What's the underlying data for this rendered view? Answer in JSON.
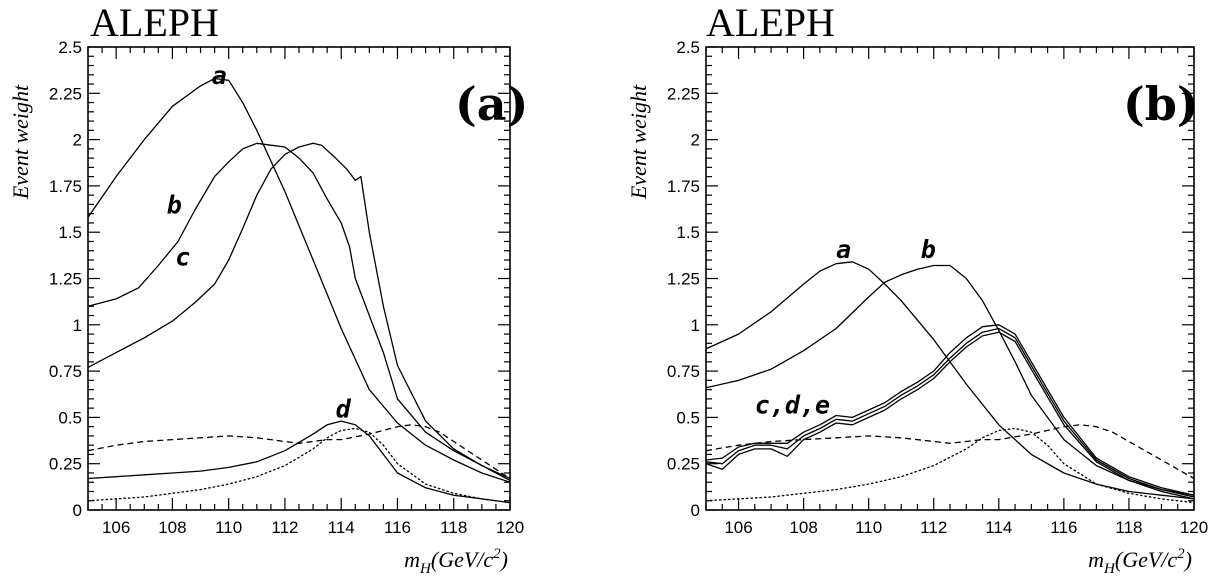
{
  "chart_data": [
    {
      "type": "line",
      "title": "ALEPH",
      "panel_label": "(a)",
      "xlabel": "m_H(GeV/c^2)",
      "ylabel": "Event weight",
      "xlim": [
        105,
        120
      ],
      "ylim": [
        0,
        2.5
      ],
      "x_ticks": [
        "106",
        "108",
        "110",
        "112",
        "114",
        "116",
        "118",
        "120"
      ],
      "y_ticks": [
        "0",
        "0.25",
        "0.5",
        "0.75",
        "1",
        "1.25",
        "1.5",
        "1.75",
        "2",
        "2.25",
        "2.5"
      ],
      "grid": false,
      "series": [
        {
          "name": "a",
          "style": "solid",
          "label_at": [
            109.4,
            2.3
          ],
          "x": [
            105,
            106,
            107,
            108,
            109,
            109.5,
            110,
            110.5,
            111,
            112,
            113,
            114,
            115,
            116,
            117,
            118,
            119,
            120
          ],
          "y": [
            1.58,
            1.8,
            2.0,
            2.18,
            2.29,
            2.33,
            2.32,
            2.2,
            2.05,
            1.72,
            1.35,
            0.98,
            0.65,
            0.47,
            0.35,
            0.27,
            0.2,
            0.15
          ]
        },
        {
          "name": "b",
          "style": "solid",
          "label_at": [
            107.8,
            1.6
          ],
          "x": [
            105,
            106,
            106.8,
            107.5,
            108.2,
            108.8,
            109.5,
            110,
            110.5,
            111,
            111.5,
            112,
            112.5,
            113,
            113.5,
            114,
            114.3,
            114.5,
            115,
            115.5,
            116,
            117,
            118,
            119,
            120
          ],
          "y": [
            1.1,
            1.14,
            1.2,
            1.32,
            1.45,
            1.62,
            1.8,
            1.88,
            1.95,
            1.98,
            1.97,
            1.96,
            1.9,
            1.82,
            1.68,
            1.55,
            1.42,
            1.25,
            1.05,
            0.85,
            0.6,
            0.42,
            0.32,
            0.24,
            0.16
          ]
        },
        {
          "name": "c",
          "style": "solid",
          "label_at": [
            108.1,
            1.32
          ],
          "x": [
            105,
            106,
            107,
            108,
            108.8,
            109.5,
            110,
            110.5,
            111,
            111.5,
            112,
            112.5,
            113,
            113.3,
            113.8,
            114.2,
            114.5,
            114.7,
            115,
            115.5,
            116,
            117,
            118,
            119,
            120
          ],
          "y": [
            0.77,
            0.85,
            0.93,
            1.02,
            1.12,
            1.22,
            1.35,
            1.52,
            1.7,
            1.84,
            1.92,
            1.96,
            1.98,
            1.97,
            1.9,
            1.84,
            1.78,
            1.8,
            1.5,
            1.1,
            0.78,
            0.48,
            0.33,
            0.24,
            0.17
          ]
        },
        {
          "name": "d",
          "style": "solid",
          "label_at": [
            113.8,
            0.5
          ],
          "x": [
            105,
            106,
            107,
            108,
            109,
            110,
            111,
            112,
            113,
            113.5,
            114,
            114.5,
            115,
            115.5,
            116,
            117,
            118,
            119,
            120
          ],
          "y": [
            0.17,
            0.18,
            0.19,
            0.2,
            0.21,
            0.23,
            0.26,
            0.32,
            0.41,
            0.46,
            0.48,
            0.46,
            0.4,
            0.3,
            0.2,
            0.12,
            0.08,
            0.06,
            0.04
          ]
        },
        {
          "name": "",
          "style": "dashed",
          "x": [
            105,
            106,
            107,
            108,
            109,
            110,
            111,
            112,
            112.5,
            113,
            113.5,
            114,
            115,
            115.5,
            116,
            116.5,
            117,
            117.5,
            118,
            119,
            120
          ],
          "y": [
            0.32,
            0.35,
            0.37,
            0.38,
            0.39,
            0.4,
            0.39,
            0.37,
            0.36,
            0.37,
            0.38,
            0.38,
            0.41,
            0.43,
            0.45,
            0.46,
            0.45,
            0.42,
            0.37,
            0.27,
            0.17
          ]
        },
        {
          "name": "",
          "style": "dotted",
          "x": [
            105,
            106,
            107,
            108,
            109,
            110,
            111,
            112,
            113,
            113.5,
            114,
            114.5,
            115,
            115.5,
            116,
            117,
            118,
            119,
            120
          ],
          "y": [
            0.05,
            0.06,
            0.07,
            0.09,
            0.11,
            0.14,
            0.18,
            0.24,
            0.33,
            0.39,
            0.43,
            0.44,
            0.42,
            0.35,
            0.25,
            0.14,
            0.09,
            0.06,
            0.04
          ]
        }
      ]
    },
    {
      "type": "line",
      "title": "ALEPH",
      "panel_label": "(b)",
      "xlabel": "m_H(GeV/c^2)",
      "ylabel": "Event weight",
      "xlim": [
        105,
        120
      ],
      "ylim": [
        0,
        2.5
      ],
      "x_ticks": [
        "106",
        "108",
        "110",
        "112",
        "114",
        "116",
        "118",
        "120"
      ],
      "y_ticks": [
        "0",
        "0.25",
        "0.5",
        "0.75",
        "1",
        "1.25",
        "1.5",
        "1.75",
        "2",
        "2.25",
        "2.5"
      ],
      "grid": false,
      "labels": [
        {
          "text": "a",
          "at": [
            109.0,
            1.36
          ]
        },
        {
          "text": "b",
          "at": [
            111.6,
            1.36
          ]
        },
        {
          "text": "c,d,e",
          "at": [
            106.5,
            0.52
          ]
        }
      ],
      "series": [
        {
          "name": "a",
          "style": "solid",
          "x": [
            105,
            106,
            107,
            108,
            108.5,
            109,
            109.5,
            110,
            110.5,
            111,
            112,
            113,
            114,
            115,
            116,
            117,
            118,
            119,
            120
          ],
          "y": [
            0.87,
            0.95,
            1.07,
            1.22,
            1.29,
            1.33,
            1.34,
            1.3,
            1.22,
            1.13,
            0.92,
            0.68,
            0.46,
            0.3,
            0.2,
            0.14,
            0.1,
            0.08,
            0.06
          ]
        },
        {
          "name": "b",
          "style": "solid",
          "x": [
            105,
            106,
            107,
            108,
            109,
            110,
            110.5,
            111,
            111.5,
            112,
            112.5,
            113,
            113.5,
            114,
            114.5,
            115,
            116,
            117,
            118,
            119,
            120
          ],
          "y": [
            0.66,
            0.7,
            0.76,
            0.86,
            0.98,
            1.15,
            1.23,
            1.27,
            1.3,
            1.32,
            1.32,
            1.25,
            1.13,
            0.97,
            0.8,
            0.62,
            0.38,
            0.24,
            0.16,
            0.11,
            0.08
          ]
        },
        {
          "name": "c",
          "style": "solid",
          "x": [
            105,
            105.5,
            106,
            106.5,
            107,
            107.5,
            108,
            108.5,
            109,
            109.5,
            110,
            110.5,
            111,
            111.5,
            112,
            112.5,
            113,
            113.5,
            114,
            114.5,
            115,
            116,
            117,
            118,
            119,
            120
          ],
          "y": [
            0.27,
            0.28,
            0.34,
            0.36,
            0.36,
            0.36,
            0.42,
            0.46,
            0.51,
            0.5,
            0.54,
            0.58,
            0.64,
            0.69,
            0.75,
            0.85,
            0.93,
            0.99,
            1.0,
            0.95,
            0.8,
            0.5,
            0.28,
            0.18,
            0.12,
            0.08
          ]
        },
        {
          "name": "d",
          "style": "solid",
          "x": [
            105,
            105.5,
            106,
            106.5,
            107,
            107.5,
            108,
            108.5,
            109,
            109.5,
            110,
            110.5,
            111,
            111.5,
            112,
            112.5,
            113,
            113.5,
            114,
            114.5,
            115,
            116,
            117,
            118,
            119,
            120
          ],
          "y": [
            0.26,
            0.25,
            0.32,
            0.35,
            0.35,
            0.33,
            0.4,
            0.44,
            0.49,
            0.48,
            0.52,
            0.56,
            0.62,
            0.67,
            0.73,
            0.82,
            0.9,
            0.96,
            0.98,
            0.93,
            0.78,
            0.48,
            0.27,
            0.17,
            0.11,
            0.07
          ]
        },
        {
          "name": "e",
          "style": "solid",
          "x": [
            105,
            105.5,
            106,
            106.5,
            107,
            107.5,
            108,
            108.5,
            109,
            109.5,
            110,
            110.5,
            111,
            111.5,
            112,
            112.5,
            113,
            113.5,
            114,
            114.5,
            115,
            116,
            117,
            118,
            119,
            120
          ],
          "y": [
            0.25,
            0.22,
            0.3,
            0.33,
            0.33,
            0.29,
            0.38,
            0.42,
            0.47,
            0.46,
            0.5,
            0.54,
            0.6,
            0.65,
            0.71,
            0.8,
            0.88,
            0.94,
            0.96,
            0.91,
            0.76,
            0.46,
            0.26,
            0.16,
            0.1,
            0.06
          ]
        },
        {
          "name": "",
          "style": "dashed",
          "x": [
            105,
            106,
            107,
            108,
            109,
            110,
            111,
            112,
            112.5,
            113,
            113.5,
            114,
            115,
            115.5,
            116,
            116.5,
            117,
            117.5,
            118,
            119,
            120
          ],
          "y": [
            0.32,
            0.35,
            0.37,
            0.38,
            0.39,
            0.4,
            0.39,
            0.37,
            0.36,
            0.37,
            0.38,
            0.38,
            0.41,
            0.43,
            0.45,
            0.46,
            0.45,
            0.42,
            0.37,
            0.27,
            0.17
          ]
        },
        {
          "name": "",
          "style": "dotted",
          "x": [
            105,
            106,
            107,
            108,
            109,
            110,
            111,
            112,
            113,
            113.5,
            114,
            114.5,
            115,
            115.5,
            116,
            117,
            118,
            119,
            120
          ],
          "y": [
            0.05,
            0.06,
            0.07,
            0.09,
            0.11,
            0.14,
            0.18,
            0.24,
            0.33,
            0.39,
            0.43,
            0.44,
            0.42,
            0.35,
            0.25,
            0.14,
            0.09,
            0.06,
            0.04
          ]
        }
      ]
    }
  ]
}
